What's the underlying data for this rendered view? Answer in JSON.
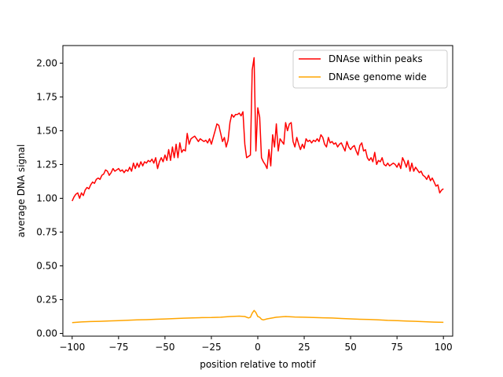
{
  "chart_data": {
    "type": "line",
    "title": "",
    "xlabel": "position relative to motif",
    "ylabel": "average DNA signal",
    "xlim": [
      -105,
      105
    ],
    "ylim": [
      -0.02,
      2.13
    ],
    "xticks": [
      -100,
      -75,
      -50,
      -25,
      0,
      25,
      50,
      75,
      100
    ],
    "xtick_labels": [
      "−100",
      "−75",
      "−50",
      "−25",
      "0",
      "25",
      "50",
      "75",
      "100"
    ],
    "yticks": [
      0.0,
      0.25,
      0.5,
      0.75,
      1.0,
      1.25,
      1.5,
      1.75,
      2.0
    ],
    "ytick_labels": [
      "0.00",
      "0.25",
      "0.50",
      "0.75",
      "1.00",
      "1.25",
      "1.50",
      "1.75",
      "2.00"
    ],
    "grid": false,
    "legend_position": "top-right",
    "series": [
      {
        "name": "DNAse within peaks",
        "color": "#ff0000",
        "points": [
          [
            -100,
            0.98
          ],
          [
            -99,
            1.01
          ],
          [
            -98,
            1.03
          ],
          [
            -97,
            1.04
          ],
          [
            -96,
            1.0
          ],
          [
            -95,
            1.04
          ],
          [
            -94,
            1.02
          ],
          [
            -93,
            1.06
          ],
          [
            -92,
            1.08
          ],
          [
            -91,
            1.07
          ],
          [
            -90,
            1.1
          ],
          [
            -89,
            1.12
          ],
          [
            -88,
            1.11
          ],
          [
            -87,
            1.14
          ],
          [
            -86,
            1.15
          ],
          [
            -85,
            1.14
          ],
          [
            -84,
            1.17
          ],
          [
            -83,
            1.18
          ],
          [
            -82,
            1.21
          ],
          [
            -81,
            1.2
          ],
          [
            -80,
            1.17
          ],
          [
            -79,
            1.19
          ],
          [
            -78,
            1.22
          ],
          [
            -77,
            1.2
          ],
          [
            -76,
            1.21
          ],
          [
            -75,
            1.22
          ],
          [
            -74,
            1.2
          ],
          [
            -73,
            1.21
          ],
          [
            -72,
            1.19
          ],
          [
            -71,
            1.21
          ],
          [
            -70,
            1.2
          ],
          [
            -69,
            1.23
          ],
          [
            -68,
            1.2
          ],
          [
            -67,
            1.26
          ],
          [
            -66,
            1.22
          ],
          [
            -65,
            1.26
          ],
          [
            -64,
            1.23
          ],
          [
            -63,
            1.27
          ],
          [
            -62,
            1.24
          ],
          [
            -61,
            1.27
          ],
          [
            -60,
            1.26
          ],
          [
            -59,
            1.28
          ],
          [
            -58,
            1.27
          ],
          [
            -57,
            1.29
          ],
          [
            -56,
            1.26
          ],
          [
            -55,
            1.3
          ],
          [
            -54,
            1.22
          ],
          [
            -53,
            1.27
          ],
          [
            -52,
            1.3
          ],
          [
            -51,
            1.27
          ],
          [
            -50,
            1.32
          ],
          [
            -49,
            1.28
          ],
          [
            -48,
            1.36
          ],
          [
            -47,
            1.28
          ],
          [
            -46,
            1.38
          ],
          [
            -45,
            1.3
          ],
          [
            -44,
            1.4
          ],
          [
            -43,
            1.3
          ],
          [
            -42,
            1.41
          ],
          [
            -41,
            1.34
          ],
          [
            -40,
            1.36
          ],
          [
            -39,
            1.35
          ],
          [
            -38,
            1.48
          ],
          [
            -37,
            1.4
          ],
          [
            -36,
            1.44
          ],
          [
            -35,
            1.45
          ],
          [
            -34,
            1.46
          ],
          [
            -33,
            1.44
          ],
          [
            -32,
            1.42
          ],
          [
            -31,
            1.44
          ],
          [
            -30,
            1.43
          ],
          [
            -29,
            1.42
          ],
          [
            -28,
            1.43
          ],
          [
            -27,
            1.41
          ],
          [
            -26,
            1.44
          ],
          [
            -25,
            1.4
          ],
          [
            -24,
            1.45
          ],
          [
            -23,
            1.5
          ],
          [
            -22,
            1.55
          ],
          [
            -21,
            1.54
          ],
          [
            -20,
            1.48
          ],
          [
            -19,
            1.42
          ],
          [
            -18,
            1.45
          ],
          [
            -17,
            1.38
          ],
          [
            -16,
            1.43
          ],
          [
            -15,
            1.56
          ],
          [
            -14,
            1.62
          ],
          [
            -13,
            1.6
          ],
          [
            -12,
            1.62
          ],
          [
            -11,
            1.62
          ],
          [
            -10,
            1.63
          ],
          [
            -9,
            1.61
          ],
          [
            -8,
            1.64
          ],
          [
            -7,
            1.4
          ],
          [
            -6,
            1.3
          ],
          [
            -5,
            1.31
          ],
          [
            -4,
            1.32
          ],
          [
            -3,
            1.95
          ],
          [
            -2,
            2.04
          ],
          [
            -1,
            1.35
          ],
          [
            0,
            1.67
          ],
          [
            1,
            1.6
          ],
          [
            2,
            1.3
          ],
          [
            3,
            1.27
          ],
          [
            4,
            1.25
          ],
          [
            5,
            1.22
          ],
          [
            6,
            1.36
          ],
          [
            7,
            1.24
          ],
          [
            8,
            1.47
          ],
          [
            9,
            1.38
          ],
          [
            10,
            1.55
          ],
          [
            11,
            1.35
          ],
          [
            12,
            1.44
          ],
          [
            13,
            1.42
          ],
          [
            14,
            1.4
          ],
          [
            15,
            1.56
          ],
          [
            16,
            1.5
          ],
          [
            17,
            1.55
          ],
          [
            18,
            1.56
          ],
          [
            19,
            1.42
          ],
          [
            20,
            1.38
          ],
          [
            21,
            1.45
          ],
          [
            22,
            1.4
          ],
          [
            23,
            1.36
          ],
          [
            24,
            1.4
          ],
          [
            25,
            1.37
          ],
          [
            26,
            1.44
          ],
          [
            27,
            1.42
          ],
          [
            28,
            1.43
          ],
          [
            29,
            1.41
          ],
          [
            30,
            1.43
          ],
          [
            31,
            1.42
          ],
          [
            32,
            1.44
          ],
          [
            33,
            1.42
          ],
          [
            34,
            1.47
          ],
          [
            35,
            1.45
          ],
          [
            36,
            1.4
          ],
          [
            37,
            1.38
          ],
          [
            38,
            1.45
          ],
          [
            39,
            1.41
          ],
          [
            40,
            1.42
          ],
          [
            41,
            1.4
          ],
          [
            42,
            1.41
          ],
          [
            43,
            1.38
          ],
          [
            44,
            1.4
          ],
          [
            45,
            1.41
          ],
          [
            46,
            1.38
          ],
          [
            47,
            1.35
          ],
          [
            48,
            1.42
          ],
          [
            49,
            1.38
          ],
          [
            50,
            1.36
          ],
          [
            51,
            1.38
          ],
          [
            52,
            1.39
          ],
          [
            53,
            1.35
          ],
          [
            54,
            1.32
          ],
          [
            55,
            1.39
          ],
          [
            56,
            1.41
          ],
          [
            57,
            1.35
          ],
          [
            58,
            1.36
          ],
          [
            59,
            1.3
          ],
          [
            60,
            1.28
          ],
          [
            61,
            1.3
          ],
          [
            62,
            1.27
          ],
          [
            63,
            1.34
          ],
          [
            64,
            1.25
          ],
          [
            65,
            1.28
          ],
          [
            66,
            1.27
          ],
          [
            67,
            1.3
          ],
          [
            68,
            1.25
          ],
          [
            69,
            1.24
          ],
          [
            70,
            1.26
          ],
          [
            71,
            1.24
          ],
          [
            72,
            1.25
          ],
          [
            73,
            1.26
          ],
          [
            74,
            1.25
          ],
          [
            75,
            1.23
          ],
          [
            76,
            1.26
          ],
          [
            77,
            1.22
          ],
          [
            78,
            1.3
          ],
          [
            79,
            1.27
          ],
          [
            80,
            1.23
          ],
          [
            81,
            1.28
          ],
          [
            82,
            1.2
          ],
          [
            83,
            1.26
          ],
          [
            84,
            1.2
          ],
          [
            85,
            1.23
          ],
          [
            86,
            1.21
          ],
          [
            87,
            1.19
          ],
          [
            88,
            1.2
          ],
          [
            89,
            1.17
          ],
          [
            90,
            1.16
          ],
          [
            91,
            1.14
          ],
          [
            92,
            1.17
          ],
          [
            93,
            1.13
          ],
          [
            94,
            1.15
          ],
          [
            95,
            1.12
          ],
          [
            96,
            1.09
          ],
          [
            97,
            1.1
          ],
          [
            98,
            1.04
          ],
          [
            99,
            1.06
          ],
          [
            100,
            1.07
          ]
        ]
      },
      {
        "name": "DNAse genome wide",
        "color": "#ffa500",
        "points": [
          [
            -100,
            0.08
          ],
          [
            -95,
            0.085
          ],
          [
            -90,
            0.088
          ],
          [
            -85,
            0.09
          ],
          [
            -80,
            0.093
          ],
          [
            -75,
            0.095
          ],
          [
            -70,
            0.098
          ],
          [
            -65,
            0.1
          ],
          [
            -60,
            0.102
          ],
          [
            -55,
            0.105
          ],
          [
            -50,
            0.107
          ],
          [
            -45,
            0.11
          ],
          [
            -40,
            0.113
          ],
          [
            -35,
            0.115
          ],
          [
            -30,
            0.117
          ],
          [
            -25,
            0.118
          ],
          [
            -20,
            0.12
          ],
          [
            -15,
            0.125
          ],
          [
            -10,
            0.128
          ],
          [
            -7,
            0.125
          ],
          [
            -5,
            0.115
          ],
          [
            -4,
            0.12
          ],
          [
            -3,
            0.15
          ],
          [
            -2,
            0.17
          ],
          [
            -1,
            0.155
          ],
          [
            0,
            0.125
          ],
          [
            1,
            0.12
          ],
          [
            2,
            0.105
          ],
          [
            3,
            0.1
          ],
          [
            5,
            0.108
          ],
          [
            8,
            0.115
          ],
          [
            10,
            0.12
          ],
          [
            15,
            0.125
          ],
          [
            20,
            0.122
          ],
          [
            25,
            0.12
          ],
          [
            30,
            0.118
          ],
          [
            35,
            0.116
          ],
          [
            40,
            0.114
          ],
          [
            45,
            0.111
          ],
          [
            50,
            0.108
          ],
          [
            55,
            0.105
          ],
          [
            60,
            0.103
          ],
          [
            65,
            0.1
          ],
          [
            70,
            0.097
          ],
          [
            75,
            0.095
          ],
          [
            80,
            0.092
          ],
          [
            85,
            0.09
          ],
          [
            90,
            0.087
          ],
          [
            95,
            0.084
          ],
          [
            100,
            0.082
          ]
        ]
      }
    ]
  }
}
